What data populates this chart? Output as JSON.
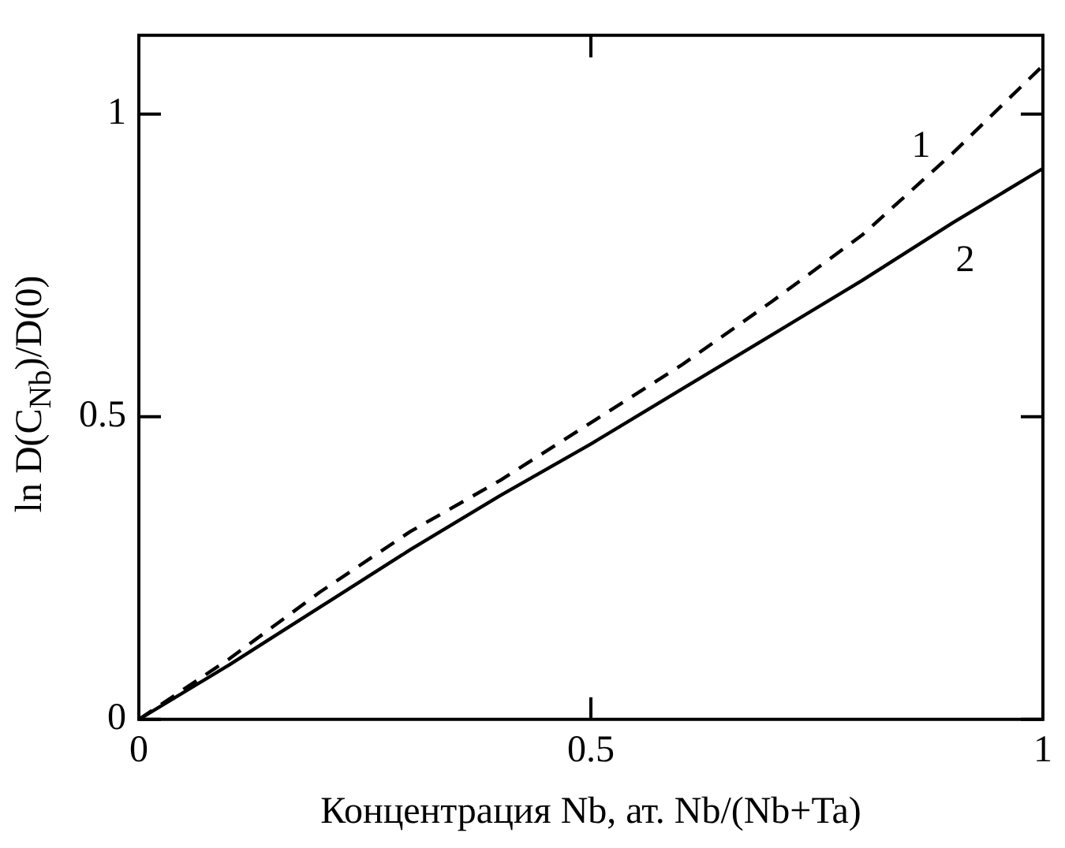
{
  "chart_data": {
    "type": "line",
    "xlabel": "Концентрация Nb, ат. Nb/(Nb+Ta)",
    "ylabel": "ln D(C$_{Nb}$)/D(0)",
    "x": [
      0,
      0.1,
      0.2,
      0.3,
      0.4,
      0.5,
      0.6,
      0.7,
      0.8,
      0.9,
      1
    ],
    "series": [
      {
        "name": "1",
        "color": "#000000",
        "line_style": "dashed",
        "values": [
          0,
          0.1,
          0.21,
          0.31,
          0.395,
          0.49,
          0.585,
          0.69,
          0.8,
          0.935,
          1.08
        ]
      },
      {
        "name": "2",
        "color": "#000000",
        "line_style": "solid",
        "values": [
          0,
          0.09,
          0.185,
          0.28,
          0.37,
          0.455,
          0.545,
          0.635,
          0.725,
          0.82,
          0.91
        ]
      }
    ],
    "xlim": [
      0,
      1
    ],
    "xticks": [
      0,
      0.5,
      1
    ],
    "ylim": [
      0,
      1.13
    ],
    "yticks": [
      0,
      0.5,
      1
    ],
    "grid": false,
    "legend": false,
    "marker": "none"
  }
}
